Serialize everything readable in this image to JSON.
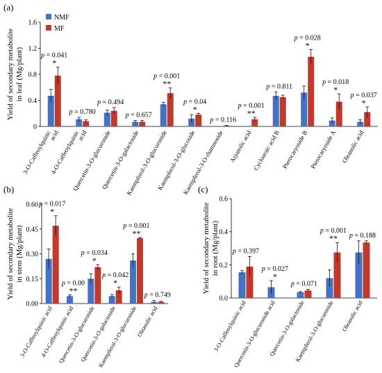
{
  "colors": {
    "NMF": "#4472c4",
    "MF": "#c0392b",
    "error": "#111111"
  },
  "panels_labels": [
    "(a)",
    "(b)",
    "(c)"
  ],
  "chart_data": [
    {
      "id": "a",
      "panel_label": "(a)",
      "type": "bar",
      "ylabel_lines": [
        "Yield of secondary metabolite",
        "in leaf (Mg/plant)"
      ],
      "ylim": [
        0,
        1.6
      ],
      "yticks": [
        "0",
        "0.4",
        "0.8",
        "1.2",
        "1.6"
      ],
      "legend": {
        "placement": "top-left",
        "entries": [
          "NMF",
          "MF"
        ]
      },
      "categories": [
        [
          "3-O-Caffeoylquinic",
          "acid"
        ],
        [
          "4-O-Caffeoylquinic",
          "acid"
        ],
        [
          "Quercetin-3-O-glucuronide"
        ],
        [
          "Quercetin-3-O-galactoside"
        ],
        [
          "Kaempferol-3-O-glucuronide"
        ],
        [
          "Kaempferol-3-O-glucoside"
        ],
        [
          "Kaempferol-3-O-rhamnoside"
        ],
        [
          "Arjunolic acid"
        ],
        [
          "Cycloaraic acid B"
        ],
        [
          "Pterocaryoside B"
        ],
        [
          "Pterocaryoside A"
        ],
        [
          "Oleanolic acid"
        ]
      ],
      "series": [
        {
          "name": "NMF",
          "values": [
            0.47,
            0.11,
            0.21,
            0.07,
            0.34,
            0.12,
            0.0,
            0.0,
            0.47,
            0.52,
            0.09,
            0.07
          ],
          "errors": [
            0.1,
            0.03,
            0.04,
            0.02,
            0.03,
            0.06,
            0.0,
            0.0,
            0.06,
            0.1,
            0.04,
            0.03
          ]
        },
        {
          "name": "MF",
          "values": [
            0.78,
            0.08,
            0.24,
            0.07,
            0.51,
            0.18,
            0.01,
            0.11,
            0.45,
            1.07,
            0.38,
            0.22
          ],
          "errors": [
            0.13,
            0.02,
            0.05,
            0.02,
            0.08,
            0.02,
            0.005,
            0.03,
            0.03,
            0.11,
            0.12,
            0.08
          ]
        }
      ],
      "annotations": [
        {
          "text": "p = 0.041",
          "stars": "*"
        },
        {
          "text": "p = 0.780",
          "stars": ""
        },
        {
          "text": "p = 0.494",
          "stars": ""
        },
        {
          "text": "p = 0.657",
          "stars": ""
        },
        {
          "text": "p = 0.001",
          "stars": "**"
        },
        {
          "text": "p = 0.04",
          "stars": "*"
        },
        {
          "text": "p = 0.116",
          "stars": ""
        },
        {
          "text": "p = 0.001",
          "stars": "**"
        },
        {
          "text": "p = 0.811",
          "stars": ""
        },
        {
          "text": "p = 0.028",
          "stars": "*"
        },
        {
          "text": "p = 0.018",
          "stars": "*"
        },
        {
          "text": "p = 0.037",
          "stars": "*"
        }
      ]
    },
    {
      "id": "b",
      "panel_label": "(b)",
      "type": "bar",
      "ylabel_lines": [
        "Yield of secondary metabolite",
        "in stem (Mg/plant)"
      ],
      "ylim": [
        0,
        0.6
      ],
      "yticks": [
        "0.00",
        "0.15",
        "0.30",
        "0.45",
        "0.60"
      ],
      "categories": [
        [
          "3-O-Caffeoylquinic acid"
        ],
        [
          "4-O-Caffeoylquinic acid"
        ],
        [
          "Quercetin-3-O-glucuronide"
        ],
        [
          "Quercetin-3-O-galactoside"
        ],
        [
          "Kaempferol-3-O-glucuronide"
        ],
        [
          "Oleanolic acid"
        ]
      ],
      "series": [
        {
          "name": "NMF",
          "values": [
            0.27,
            0.045,
            0.15,
            0.045,
            0.26,
            0.01
          ],
          "errors": [
            0.06,
            0.008,
            0.03,
            0.01,
            0.04,
            0.008
          ]
        },
        {
          "name": "MF",
          "values": [
            0.47,
            0.0,
            0.22,
            0.08,
            0.395,
            0.01
          ],
          "errors": [
            0.06,
            0.0,
            0.015,
            0.02,
            0.004,
            0.003
          ]
        }
      ],
      "annotations": [
        {
          "text": "p = 0.017",
          "stars": "*"
        },
        {
          "text": "p = 0.00",
          "stars": "**"
        },
        {
          "text": "p = 0.034",
          "stars": "*"
        },
        {
          "text": "p = 0.042",
          "stars": "*"
        },
        {
          "text": "p = 0.001",
          "stars": "**"
        },
        {
          "text": "p = 0.749",
          "stars": ""
        }
      ]
    },
    {
      "id": "c",
      "panel_label": "(c)",
      "type": "bar",
      "ylabel_lines": [
        "Yield of secondary metabolite",
        "in root (Mg/plant)"
      ],
      "ylim": [
        0,
        0.6
      ],
      "yticks": [
        "0.0",
        "0.2",
        "0.4",
        "0.6"
      ],
      "categories": [
        [
          "3-O-Caffeoylquinic acid"
        ],
        [
          "Quercetin-3-O-glucuronide acid"
        ],
        [
          "Quercetin-3-O-galactoside"
        ],
        [
          "Kaempferol-3-O-glucuronide"
        ],
        [
          "Oleanolic acid"
        ]
      ],
      "series": [
        {
          "name": "NMF",
          "values": [
            0.155,
            0.065,
            0.035,
            0.12,
            0.275
          ],
          "errors": [
            0.01,
            0.04,
            0.003,
            0.05,
            0.07
          ]
        },
        {
          "name": "MF",
          "values": [
            0.19,
            0.0,
            0.045,
            0.275,
            0.335
          ],
          "errors": [
            0.06,
            0.0,
            0.007,
            0.06,
            0.01
          ]
        }
      ],
      "annotations": [
        {
          "text": "p = 0.397",
          "stars": ""
        },
        {
          "text": "p = 0.027",
          "stars": "*"
        },
        {
          "text": "p = 0.071",
          "stars": ""
        },
        {
          "text": "p = 0.001",
          "stars": "**"
        },
        {
          "text": "p = 0.188",
          "stars": ""
        }
      ]
    }
  ]
}
